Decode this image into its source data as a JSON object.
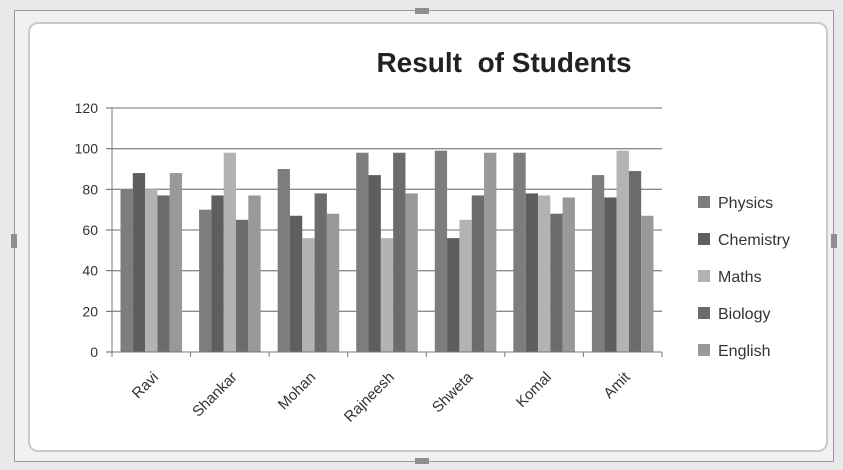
{
  "chart_data": {
    "type": "bar",
    "title": "Result  of Students",
    "xlabel": "",
    "ylabel": "",
    "ylim": [
      0,
      120
    ],
    "yticks": [
      "0",
      "20",
      "40",
      "60",
      "80",
      "100",
      "120"
    ],
    "grid": true,
    "legend_position": "right",
    "categories": [
      "Ravi",
      "Shankar",
      "Mohan",
      "Rajneesh",
      "Shweta",
      "Komal",
      "Amit"
    ],
    "series": [
      {
        "name": "Physics",
        "color": "#7d7d7d",
        "values": [
          80,
          70,
          90,
          98,
          99,
          98,
          87
        ]
      },
      {
        "name": "Chemistry",
        "color": "#5e5e5e",
        "values": [
          88,
          77,
          67,
          87,
          56,
          78,
          76
        ]
      },
      {
        "name": "Maths",
        "color": "#b3b3b3",
        "values": [
          80,
          98,
          56,
          56,
          65,
          77,
          99
        ]
      },
      {
        "name": "Biology",
        "color": "#6c6c6c",
        "values": [
          77,
          65,
          78,
          98,
          77,
          68,
          89
        ]
      },
      {
        "name": "English",
        "color": "#999999",
        "values": [
          88,
          77,
          68,
          78,
          98,
          76,
          67
        ]
      }
    ]
  }
}
